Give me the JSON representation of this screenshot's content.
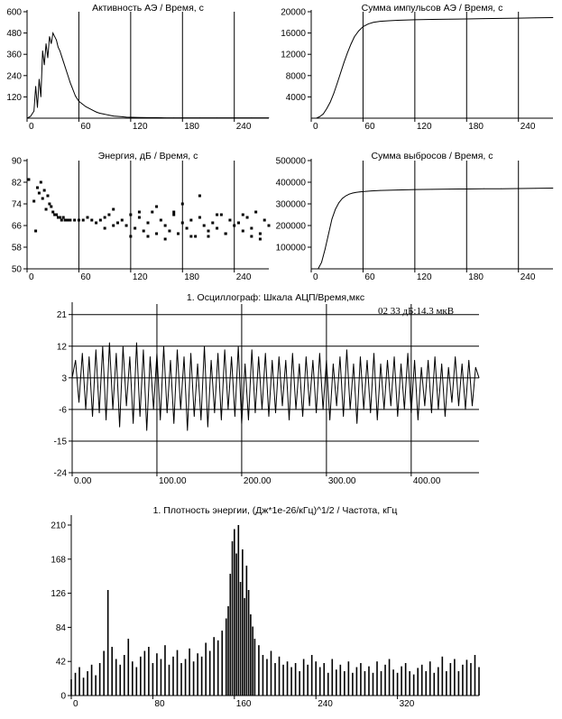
{
  "chart_data": [
    {
      "id": "activity",
      "type": "line",
      "title": "Активность АЭ / Время, с",
      "xlim": [
        0,
        280
      ],
      "ylim": [
        0,
        600
      ],
      "x_ticks": [
        0,
        60,
        120,
        180,
        240
      ],
      "y_ticks": [
        120,
        240,
        360,
        480,
        600
      ],
      "x_tick_labels": [
        "0",
        "60",
        "120",
        "180",
        "240"
      ],
      "y_tick_labels": [
        "120",
        "240",
        "360",
        "480",
        "600"
      ],
      "grid": "vertical",
      "series": [
        {
          "x": [
            0,
            4,
            8,
            10,
            12,
            14,
            16,
            18,
            20,
            22,
            24,
            26,
            28,
            30,
            32,
            34,
            36,
            38,
            40,
            42,
            44,
            46,
            48,
            50,
            52,
            54,
            56,
            58,
            60,
            64,
            68,
            72,
            76,
            80,
            84,
            88,
            92,
            96,
            100,
            105,
            110,
            115,
            120,
            130,
            140,
            150,
            160,
            170,
            180,
            200,
            220,
            240,
            260,
            280
          ],
          "y": [
            0,
            10,
            40,
            180,
            60,
            220,
            120,
            380,
            300,
            420,
            340,
            460,
            420,
            480,
            460,
            440,
            400,
            380,
            350,
            320,
            290,
            260,
            230,
            200,
            175,
            150,
            125,
            110,
            95,
            80,
            65,
            55,
            45,
            35,
            28,
            24,
            20,
            16,
            12,
            10,
            8,
            6,
            5,
            4,
            3,
            3,
            2,
            2,
            2,
            2,
            2,
            2,
            2,
            2
          ]
        }
      ]
    },
    {
      "id": "sum-pulses",
      "type": "line",
      "title": "Сумма импульсов АЭ / Время, с",
      "xlim": [
        0,
        280
      ],
      "ylim": [
        0,
        20000
      ],
      "x_ticks": [
        0,
        60,
        120,
        180,
        240
      ],
      "y_ticks": [
        4000,
        8000,
        12000,
        16000,
        20000
      ],
      "x_tick_labels": [
        "0",
        "60",
        "120",
        "180",
        "240"
      ],
      "y_tick_labels": [
        "4000",
        "8000",
        "12000",
        "16000",
        "20000"
      ],
      "grid": "vertical",
      "series": [
        {
          "x": [
            0,
            6,
            10,
            14,
            18,
            22,
            26,
            30,
            34,
            38,
            42,
            46,
            50,
            55,
            60,
            66,
            72,
            80,
            90,
            100,
            120,
            140,
            160,
            180,
            200,
            220,
            240,
            260,
            280
          ],
          "y": [
            0,
            0,
            300,
            800,
            1800,
            3000,
            4600,
            6500,
            8500,
            10500,
            12300,
            13900,
            15300,
            16400,
            17200,
            17700,
            18000,
            18200,
            18300,
            18400,
            18500,
            18550,
            18600,
            18650,
            18700,
            18750,
            18800,
            18850,
            18900
          ]
        }
      ]
    },
    {
      "id": "energy",
      "type": "scatter",
      "title": "Энергия, дБ / Время, с",
      "xlim": [
        0,
        280
      ],
      "ylim": [
        50,
        90
      ],
      "x_ticks": [
        0,
        60,
        120,
        180,
        240
      ],
      "y_ticks": [
        50,
        58,
        66,
        74,
        82,
        90
      ],
      "x_tick_labels": [
        "0",
        "60",
        "120",
        "180",
        "240"
      ],
      "y_tick_labels": [
        "50",
        "58",
        "66",
        "74",
        "82",
        "90"
      ],
      "grid": "vertical",
      "series": [
        {
          "x": [
            2,
            8,
            10,
            12,
            14,
            16,
            18,
            20,
            22,
            24,
            26,
            28,
            30,
            32,
            34,
            36,
            38,
            40,
            42,
            44,
            46,
            48,
            50,
            55,
            60,
            65,
            70,
            75,
            80,
            85,
            90,
            95,
            100,
            105,
            110,
            115,
            120,
            125,
            130,
            135,
            140,
            145,
            150,
            155,
            160,
            165,
            170,
            175,
            180,
            185,
            190,
            195,
            200,
            205,
            210,
            215,
            220,
            225,
            230,
            235,
            240,
            245,
            250,
            255,
            260,
            265,
            270,
            275,
            280,
            100,
            150,
            180,
            200,
            250,
            120,
            140,
            160,
            190,
            210,
            230,
            260,
            270,
            90,
            130,
            170,
            220
          ],
          "y": [
            83,
            75,
            64,
            80,
            78,
            82,
            76,
            79,
            72,
            77,
            74,
            73,
            71,
            70,
            70,
            69,
            69,
            68,
            69,
            68,
            68,
            68,
            68,
            68,
            68,
            68,
            69,
            68,
            67,
            68,
            69,
            70,
            66,
            67,
            68,
            66,
            70,
            65,
            69,
            64,
            67,
            71,
            63,
            68,
            66,
            64,
            70,
            63,
            67,
            65,
            68,
            62,
            69,
            66,
            64,
            67,
            65,
            70,
            63,
            68,
            66,
            67,
            64,
            69,
            65,
            71,
            63,
            68,
            66,
            72,
            73,
            74,
            77,
            70,
            62,
            62,
            61,
            62,
            62,
            63,
            62,
            61,
            65,
            71,
            71,
            70
          ]
        }
      ]
    },
    {
      "id": "sum-overshoots",
      "type": "line",
      "title": "Сумма выбросов / Время, с",
      "xlim": [
        0,
        280
      ],
      "ylim": [
        0,
        500000
      ],
      "x_ticks": [
        0,
        60,
        120,
        180,
        240
      ],
      "y_ticks": [
        100000,
        200000,
        300000,
        400000,
        500000
      ],
      "x_tick_labels": [
        "0",
        "60",
        "120",
        "180",
        "240"
      ],
      "y_tick_labels": [
        "100000",
        "200000",
        "300000",
        "400000",
        "500000"
      ],
      "grid": "vertical",
      "series": [
        {
          "x": [
            0,
            8,
            12,
            16,
            20,
            24,
            28,
            32,
            36,
            40,
            44,
            48,
            52,
            56,
            60,
            70,
            80,
            100,
            120,
            140,
            160,
            180,
            200,
            220,
            240,
            260,
            280
          ],
          "y": [
            0,
            0,
            30000,
            90000,
            160000,
            230000,
            275000,
            305000,
            325000,
            337000,
            345000,
            350000,
            353000,
            355000,
            357000,
            360000,
            362000,
            364000,
            366000,
            367000,
            368000,
            369000,
            370000,
            370000,
            371000,
            372000,
            373000
          ]
        }
      ]
    },
    {
      "id": "oscillogram",
      "type": "line",
      "title": "1. Осциллограф: Шкала АЦП/Время,мкс",
      "annotation": "02    33 дБ:14.3 мкВ",
      "xlim": [
        0,
        480
      ],
      "ylim": [
        -24,
        24
      ],
      "x_ticks": [
        0,
        100,
        200,
        300,
        400
      ],
      "y_ticks": [
        -24,
        -15,
        -6,
        3,
        12,
        21
      ],
      "x_tick_labels": [
        "0.00",
        "100.00",
        "200.00",
        "300.00",
        "400.00"
      ],
      "y_tick_labels": [
        "-24",
        "-15",
        "-6",
        "3",
        "12",
        "21"
      ],
      "grid": "both",
      "series": [
        {
          "x": [
            0,
            4,
            8,
            12,
            16,
            20,
            24,
            28,
            32,
            36,
            40,
            44,
            48,
            52,
            56,
            60,
            64,
            68,
            72,
            76,
            80,
            84,
            88,
            92,
            96,
            100,
            104,
            108,
            112,
            116,
            120,
            124,
            128,
            132,
            136,
            140,
            144,
            148,
            152,
            156,
            160,
            164,
            168,
            172,
            176,
            180,
            184,
            188,
            192,
            196,
            200,
            204,
            208,
            212,
            216,
            220,
            224,
            228,
            232,
            236,
            240,
            244,
            248,
            252,
            256,
            260,
            264,
            268,
            272,
            276,
            280,
            284,
            288,
            292,
            296,
            300,
            304,
            308,
            312,
            316,
            320,
            324,
            328,
            332,
            336,
            340,
            344,
            348,
            352,
            356,
            360,
            364,
            368,
            372,
            376,
            380,
            384,
            388,
            392,
            396,
            400,
            404,
            408,
            412,
            416,
            420,
            424,
            428,
            432,
            436,
            440,
            444,
            448,
            452,
            456,
            460,
            464,
            468,
            472,
            476,
            480
          ],
          "y": [
            3,
            8,
            -4,
            10,
            -6,
            9,
            -8,
            11,
            -7,
            12,
            -9,
            13,
            -6,
            10,
            -11,
            12,
            -5,
            9,
            -10,
            13,
            -8,
            11,
            -12,
            9,
            -6,
            10,
            -9,
            12,
            -7,
            8,
            -10,
            11,
            -6,
            9,
            -12,
            10,
            -8,
            7,
            -9,
            12,
            -11,
            8,
            -7,
            10,
            -9,
            11,
            -6,
            9,
            -8,
            12,
            -10,
            7,
            -9,
            11,
            -7,
            9,
            -6,
            10,
            -8,
            8,
            -7,
            9,
            -5,
            8,
            -9,
            10,
            -6,
            7,
            -8,
            9,
            -5,
            8,
            -7,
            10,
            -6,
            8,
            -9,
            7,
            -5,
            9,
            -8,
            11,
            -6,
            7,
            -10,
            9,
            -6,
            8,
            -7,
            10,
            -9,
            7,
            -6,
            8,
            -5,
            9,
            -8,
            7,
            -6,
            10,
            -7,
            8,
            -9,
            6,
            -5,
            8,
            -7,
            9,
            -6,
            7,
            -8,
            6,
            -4,
            9,
            -5,
            7,
            -6,
            8,
            -5,
            6,
            3
          ]
        }
      ]
    },
    {
      "id": "energy-density",
      "type": "bar",
      "title": "1. Плотность энергии, (Дж*1е-26/кГц)^1/2 / Частота, кГц",
      "xlim": [
        0,
        400
      ],
      "ylim": [
        0,
        220
      ],
      "x_ticks": [
        0,
        80,
        160,
        240,
        320
      ],
      "y_ticks": [
        0,
        42,
        84,
        126,
        168,
        210
      ],
      "x_tick_labels": [
        "0",
        "80",
        "160",
        "240",
        "320"
      ],
      "y_tick_labels": [
        "0",
        "42",
        "84",
        "126",
        "168",
        "210"
      ],
      "grid": "none",
      "series": [
        {
          "x": [
            0,
            4,
            8,
            12,
            16,
            20,
            24,
            28,
            32,
            36,
            40,
            44,
            48,
            52,
            56,
            60,
            64,
            68,
            72,
            76,
            80,
            84,
            88,
            92,
            96,
            100,
            104,
            108,
            112,
            116,
            120,
            124,
            128,
            132,
            136,
            140,
            144,
            148,
            152,
            154,
            156,
            158,
            160,
            162,
            164,
            166,
            168,
            170,
            172,
            174,
            176,
            178,
            180,
            184,
            188,
            192,
            196,
            200,
            204,
            208,
            212,
            216,
            220,
            224,
            228,
            232,
            236,
            240,
            244,
            248,
            252,
            256,
            260,
            264,
            268,
            272,
            276,
            280,
            284,
            288,
            292,
            296,
            300,
            304,
            308,
            312,
            316,
            320,
            324,
            328,
            332,
            336,
            340,
            344,
            348,
            352,
            356,
            360,
            364,
            368,
            372,
            376,
            380,
            384,
            388,
            392,
            396,
            400
          ],
          "y": [
            20,
            28,
            35,
            22,
            30,
            38,
            25,
            40,
            55,
            130,
            60,
            45,
            38,
            50,
            70,
            42,
            35,
            48,
            55,
            60,
            40,
            52,
            45,
            62,
            38,
            48,
            56,
            40,
            45,
            58,
            42,
            52,
            48,
            65,
            55,
            72,
            68,
            80,
            95,
            110,
            150,
            190,
            205,
            175,
            210,
            140,
            180,
            120,
            160,
            130,
            100,
            85,
            70,
            62,
            50,
            45,
            55,
            40,
            48,
            38,
            42,
            35,
            40,
            30,
            45,
            38,
            50,
            42,
            35,
            40,
            28,
            45,
            32,
            38,
            30,
            42,
            28,
            35,
            40,
            30,
            36,
            28,
            42,
            30,
            38,
            45,
            32,
            28,
            36,
            40,
            30,
            26,
            34,
            38,
            30,
            42,
            28,
            35,
            48,
            30,
            40,
            45,
            30,
            38,
            44,
            40,
            50,
            35
          ]
        }
      ]
    }
  ]
}
